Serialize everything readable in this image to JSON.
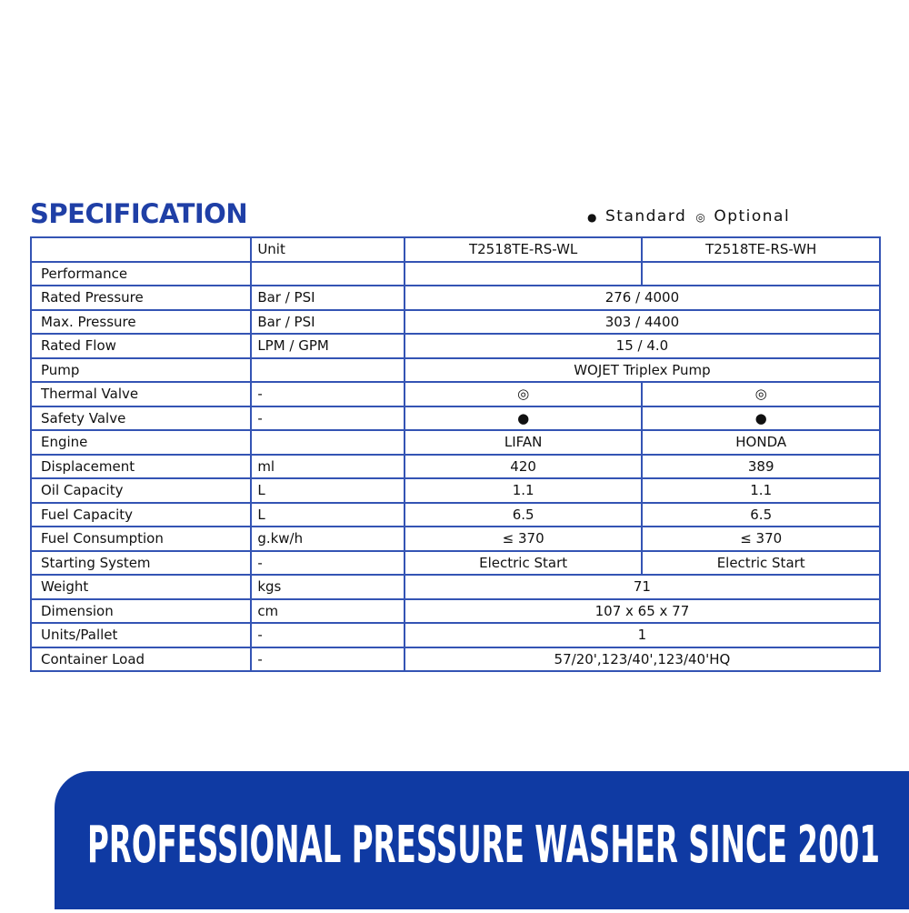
{
  "title": "SPECIFICATION",
  "legend": [
    {
      "symbol": "●",
      "label": "Standard"
    },
    {
      "symbol": "◎",
      "label": "Optional"
    }
  ],
  "table": {
    "header": {
      "unit": "Unit",
      "models": [
        "T2518TE-RS-WL",
        "T2518TE-RS-WH"
      ]
    },
    "rows": [
      {
        "label": "Performance"
      },
      {
        "label": "Rated Pressure",
        "unit": "Bar / PSI",
        "values": [
          "276 / 4000"
        ]
      },
      {
        "label": "Max. Pressure",
        "unit": "Bar / PSI",
        "values": [
          "303 / 4400"
        ]
      },
      {
        "label": "Rated Flow",
        "unit": "LPM / GPM",
        "values": [
          "15 / 4.0"
        ]
      },
      {
        "label": "Pump",
        "values": [
          "WOJET  Triplex Pump"
        ]
      },
      {
        "label": "Thermal Valve",
        "unit": "-",
        "values": [
          "◎",
          "◎"
        ]
      },
      {
        "label": "Safety Valve",
        "unit": "-",
        "values": [
          "●",
          "●"
        ]
      },
      {
        "label": "Engine",
        "values": [
          "LIFAN",
          "HONDA"
        ]
      },
      {
        "label": "Displacement",
        "unit": "ml",
        "values": [
          "420",
          "389"
        ]
      },
      {
        "label": "Oil Capacity",
        "unit": "L",
        "values": [
          "1.1",
          "1.1"
        ]
      },
      {
        "label": "Fuel Capacity",
        "unit": "L",
        "values": [
          "6.5",
          "6.5"
        ]
      },
      {
        "label": "Fuel Consumption",
        "unit": "g.kw/h",
        "values": [
          "≤ 370",
          "≤ 370"
        ]
      },
      {
        "label": "Starting System",
        "unit": "-",
        "values": [
          "Electric Start",
          "Electric Start"
        ]
      },
      {
        "label": "Weight",
        "unit": "kgs",
        "values": [
          "71"
        ]
      },
      {
        "label": "Dimension",
        "unit": "cm",
        "values": [
          "107 x 65 x 77"
        ]
      },
      {
        "label": "Units/Pallet",
        "unit": "-",
        "values": [
          "1"
        ]
      },
      {
        "label": "Container Load",
        "unit": "-",
        "values": [
          "57/20',123/40',123/40'HQ"
        ]
      }
    ]
  },
  "banner": "PROFESSIONAL PRESSURE WASHER SINCE 2001"
}
